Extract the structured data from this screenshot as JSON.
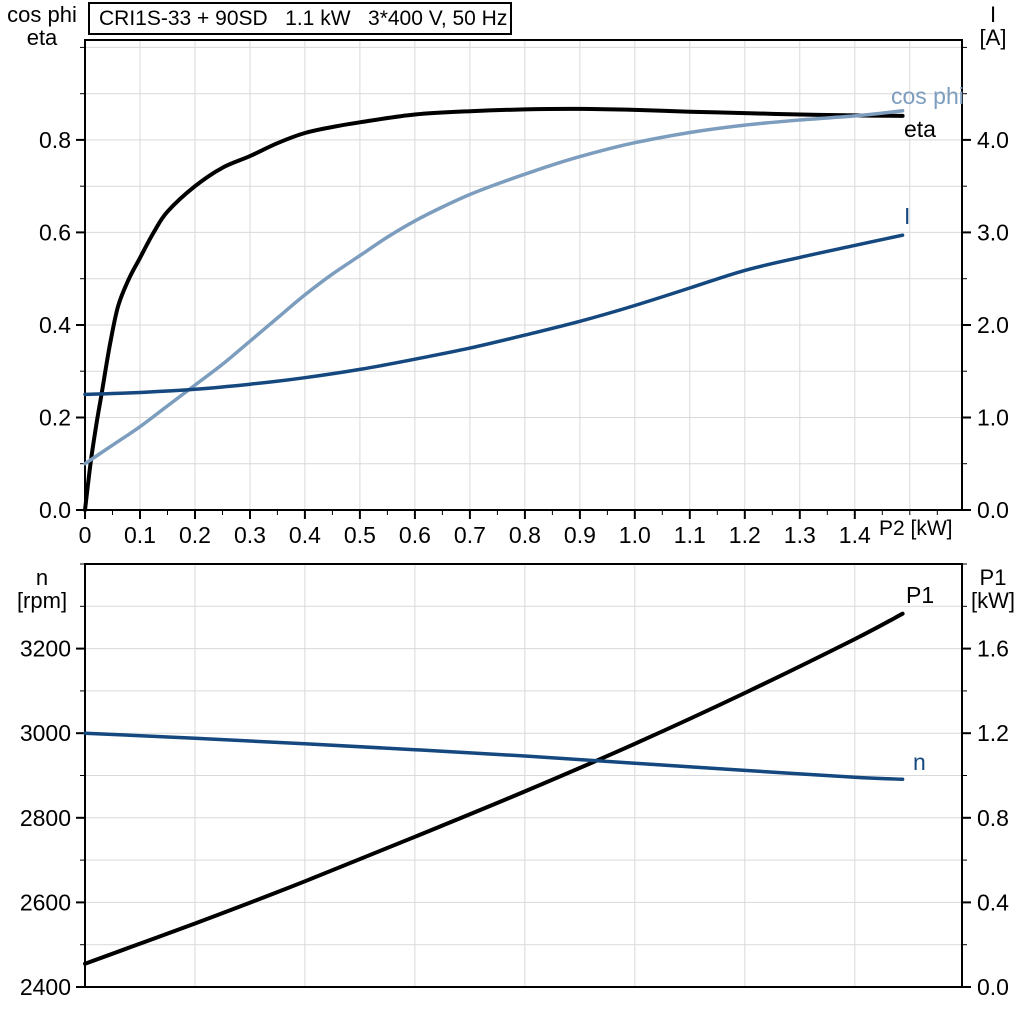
{
  "colors": {
    "black": "#000000",
    "light_blue": "#7C9DBE",
    "dark_blue": "#14487E",
    "grid": "#D9D9D9",
    "background": "#FFFFFF"
  },
  "chart_data": [
    {
      "type": "line",
      "title": "CRI1S-33 + 90SD   1.1 kW   3*400 V, 50 Hz",
      "x_axis": {
        "label": "P2 [kW]",
        "min": 0,
        "max": 1.595,
        "tick_values": [
          0,
          0.1,
          0.2,
          0.3,
          0.4,
          0.5,
          0.6,
          0.7,
          0.8,
          0.9,
          1.0,
          1.1,
          1.2,
          1.3,
          1.4
        ],
        "tick_labels": [
          "0",
          "0.1",
          "0.2",
          "0.3",
          "0.4",
          "0.5",
          "0.6",
          "0.7",
          "0.8",
          "0.9",
          "1.0",
          "1.1",
          "1.2",
          "1.3",
          "1.4"
        ],
        "minor_step": 0.05,
        "grid_min": 0.1,
        "grid_max": 1.5,
        "grid_step": 0.1
      },
      "left_axis": {
        "title_lines": [
          "cos phi",
          "eta"
        ],
        "min": 0,
        "max": 1.016,
        "tick_values": [
          0.0,
          0.2,
          0.4,
          0.6,
          0.8
        ],
        "tick_labels": [
          "0.0",
          "0.2",
          "0.4",
          "0.6",
          "0.8"
        ],
        "minor_step": 0.1,
        "grid_min": 0.1,
        "grid_max": 1.0,
        "grid_step": 0.1
      },
      "right_axis": {
        "title_lines": [
          "I",
          "[A]"
        ],
        "min": 0,
        "max": 5.08,
        "tick_values": [
          0.0,
          1.0,
          2.0,
          3.0,
          4.0
        ],
        "tick_labels": [
          "0.0",
          "1.0",
          "2.0",
          "3.0",
          "4.0"
        ],
        "minor_step": 0.5
      },
      "legend_position": "curve-end-labels",
      "grid": true,
      "series": [
        {
          "name": "eta",
          "axis": "left",
          "color": "#000000",
          "width": 4,
          "points": [
            [
              0,
              0
            ],
            [
              0.01,
              0.1
            ],
            [
              0.02,
              0.18
            ],
            [
              0.03,
              0.25
            ],
            [
              0.045,
              0.355
            ],
            [
              0.06,
              0.44
            ],
            [
              0.08,
              0.5
            ],
            [
              0.1,
              0.545
            ],
            [
              0.125,
              0.6
            ],
            [
              0.15,
              0.645
            ],
            [
              0.2,
              0.7
            ],
            [
              0.25,
              0.74
            ],
            [
              0.3,
              0.765
            ],
            [
              0.35,
              0.793
            ],
            [
              0.4,
              0.815
            ],
            [
              0.45,
              0.828
            ],
            [
              0.5,
              0.838
            ],
            [
              0.6,
              0.855
            ],
            [
              0.7,
              0.862
            ],
            [
              0.8,
              0.866
            ],
            [
              0.9,
              0.867
            ],
            [
              1.0,
              0.865
            ],
            [
              1.1,
              0.861
            ],
            [
              1.2,
              0.858
            ],
            [
              1.3,
              0.855
            ],
            [
              1.4,
              0.853
            ],
            [
              1.487,
              0.852
            ]
          ]
        },
        {
          "name": "cos phi",
          "axis": "left",
          "color": "#7C9DBE",
          "width": 3.5,
          "points": [
            [
              0,
              0.1
            ],
            [
              0.05,
              0.14
            ],
            [
              0.1,
              0.18
            ],
            [
              0.15,
              0.225
            ],
            [
              0.2,
              0.27
            ],
            [
              0.25,
              0.315
            ],
            [
              0.3,
              0.365
            ],
            [
              0.35,
              0.415
            ],
            [
              0.4,
              0.465
            ],
            [
              0.45,
              0.51
            ],
            [
              0.5,
              0.55
            ],
            [
              0.55,
              0.59
            ],
            [
              0.6,
              0.625
            ],
            [
              0.65,
              0.655
            ],
            [
              0.7,
              0.682
            ],
            [
              0.75,
              0.705
            ],
            [
              0.8,
              0.726
            ],
            [
              0.85,
              0.746
            ],
            [
              0.9,
              0.764
            ],
            [
              0.95,
              0.78
            ],
            [
              1.0,
              0.794
            ],
            [
              1.1,
              0.816
            ],
            [
              1.2,
              0.832
            ],
            [
              1.3,
              0.843
            ],
            [
              1.4,
              0.852
            ],
            [
              1.487,
              0.863
            ]
          ]
        },
        {
          "name": "I",
          "axis": "right",
          "color": "#14487E",
          "width": 3.5,
          "points": [
            [
              0,
              1.25
            ],
            [
              0.1,
              1.27
            ],
            [
              0.2,
              1.305
            ],
            [
              0.3,
              1.36
            ],
            [
              0.4,
              1.43
            ],
            [
              0.5,
              1.52
            ],
            [
              0.6,
              1.63
            ],
            [
              0.7,
              1.75
            ],
            [
              0.8,
              1.89
            ],
            [
              0.9,
              2.04
            ],
            [
              1.0,
              2.21
            ],
            [
              1.1,
              2.4
            ],
            [
              1.2,
              2.59
            ],
            [
              1.3,
              2.73
            ],
            [
              1.4,
              2.86
            ],
            [
              1.487,
              2.97
            ]
          ]
        }
      ]
    },
    {
      "type": "line",
      "title": "",
      "x_axis": {
        "label": "",
        "min": 0,
        "max": 1.595,
        "grid_min": 0.2,
        "grid_max": 1.4,
        "grid_step": 0.2
      },
      "left_axis": {
        "title_lines": [
          "n",
          "[rpm]"
        ],
        "min": 2400,
        "max": 3400,
        "tick_values": [
          2400,
          2600,
          2800,
          3000,
          3200
        ],
        "tick_labels": [
          "2400",
          "2600",
          "2800",
          "3000",
          "3200"
        ],
        "minor_step": 100,
        "grid_min": 2500,
        "grid_max": 3300,
        "grid_step": 100
      },
      "right_axis": {
        "title_lines": [
          "P1",
          "[kW]"
        ],
        "min": 0,
        "max": 2.0,
        "tick_values": [
          0.0,
          0.4,
          0.8,
          1.2,
          1.6
        ],
        "tick_labels": [
          "0.0",
          "0.4",
          "0.8",
          "1.2",
          "1.6"
        ],
        "minor_step": 0.2
      },
      "legend_position": "curve-end-labels",
      "grid": true,
      "series": [
        {
          "name": "P1",
          "axis": "right",
          "color": "#000000",
          "width": 4,
          "points": [
            [
              0,
              0.11
            ],
            [
              0.2,
              0.3
            ],
            [
              0.4,
              0.5
            ],
            [
              0.6,
              0.71
            ],
            [
              0.8,
              0.925
            ],
            [
              1.0,
              1.15
            ],
            [
              1.2,
              1.39
            ],
            [
              1.4,
              1.645
            ],
            [
              1.487,
              1.765
            ]
          ]
        },
        {
          "name": "n",
          "axis": "left",
          "color": "#14487E",
          "width": 3.5,
          "points": [
            [
              0,
              3000
            ],
            [
              0.2,
              2988
            ],
            [
              0.4,
              2975
            ],
            [
              0.6,
              2961
            ],
            [
              0.8,
              2946
            ],
            [
              1.0,
              2929
            ],
            [
              1.2,
              2912
            ],
            [
              1.4,
              2896
            ],
            [
              1.487,
              2891
            ]
          ]
        }
      ]
    }
  ]
}
